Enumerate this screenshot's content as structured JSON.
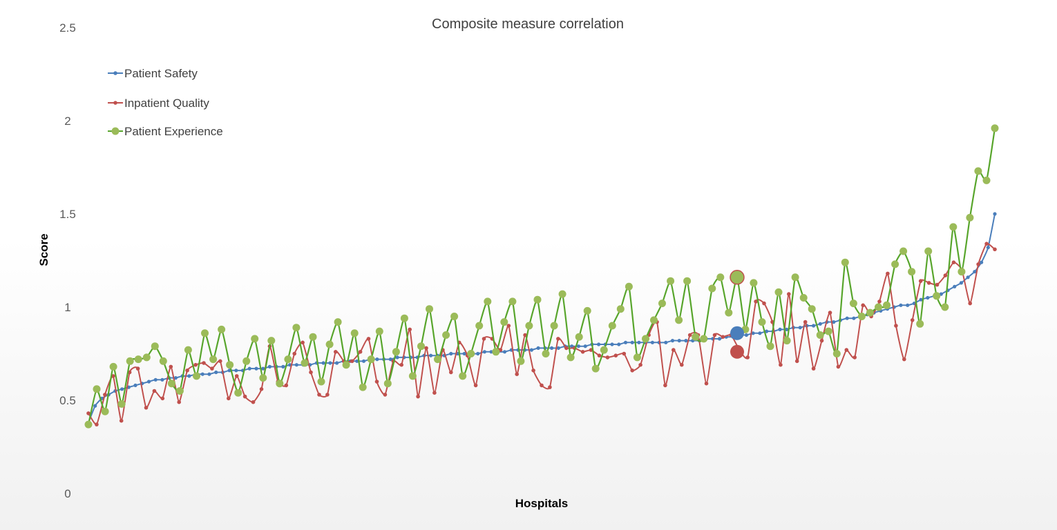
{
  "chart_data": {
    "type": "line",
    "title": "Composite measure correlation",
    "xlabel": "Hospitals",
    "ylabel": "Score",
    "ylim": [
      0,
      2.5
    ],
    "yticks": [
      "0",
      "0.5",
      "1",
      "1.5",
      "2",
      "2.5"
    ],
    "grid": false,
    "legend_position": "top-left",
    "series": [
      {
        "name": "Patient Safety",
        "color": "#4a7ebb",
        "values": [
          0.38,
          0.47,
          0.51,
          0.53,
          0.55,
          0.56,
          0.57,
          0.58,
          0.59,
          0.6,
          0.61,
          0.61,
          0.62,
          0.62,
          0.63,
          0.63,
          0.64,
          0.64,
          0.64,
          0.65,
          0.65,
          0.66,
          0.66,
          0.66,
          0.67,
          0.67,
          0.67,
          0.68,
          0.68,
          0.68,
          0.69,
          0.69,
          0.69,
          0.69,
          0.7,
          0.7,
          0.7,
          0.7,
          0.71,
          0.71,
          0.71,
          0.71,
          0.72,
          0.72,
          0.72,
          0.72,
          0.73,
          0.73,
          0.73,
          0.73,
          0.74,
          0.74,
          0.74,
          0.74,
          0.75,
          0.75,
          0.75,
          0.75,
          0.75,
          0.76,
          0.76,
          0.76,
          0.76,
          0.77,
          0.77,
          0.77,
          0.77,
          0.78,
          0.78,
          0.78,
          0.78,
          0.79,
          0.79,
          0.79,
          0.79,
          0.8,
          0.8,
          0.8,
          0.8,
          0.8,
          0.81,
          0.81,
          0.81,
          0.81,
          0.81,
          0.81,
          0.81,
          0.82,
          0.82,
          0.82,
          0.82,
          0.82,
          0.83,
          0.83,
          0.83,
          0.84,
          0.84,
          0.85,
          0.85,
          0.86,
          0.86,
          0.87,
          0.87,
          0.88,
          0.88,
          0.89,
          0.89,
          0.9,
          0.9,
          0.91,
          0.92,
          0.92,
          0.93,
          0.94,
          0.94,
          0.95,
          0.96,
          0.97,
          0.98,
          0.99,
          1.0,
          1.01,
          1.01,
          1.02,
          1.04,
          1.05,
          1.06,
          1.07,
          1.09,
          1.11,
          1.13,
          1.16,
          1.19,
          1.24,
          1.32,
          1.5
        ]
      },
      {
        "name": "Inpatient Quality",
        "color": "#c0504d",
        "values": [
          0.43,
          0.37,
          0.53,
          0.63,
          0.39,
          0.65,
          0.67,
          0.46,
          0.55,
          0.51,
          0.68,
          0.49,
          0.66,
          0.69,
          0.7,
          0.67,
          0.71,
          0.51,
          0.63,
          0.52,
          0.49,
          0.56,
          0.79,
          0.6,
          0.58,
          0.75,
          0.81,
          0.65,
          0.53,
          0.53,
          0.76,
          0.71,
          0.71,
          0.76,
          0.83,
          0.6,
          0.53,
          0.71,
          0.69,
          0.88,
          0.52,
          0.78,
          0.54,
          0.77,
          0.65,
          0.81,
          0.74,
          0.58,
          0.83,
          0.83,
          0.77,
          0.9,
          0.64,
          0.85,
          0.66,
          0.58,
          0.57,
          0.83,
          0.78,
          0.78,
          0.76,
          0.77,
          0.74,
          0.73,
          0.74,
          0.75,
          0.66,
          0.69,
          0.85,
          0.92,
          0.58,
          0.77,
          0.69,
          0.85,
          0.85,
          0.59,
          0.85,
          0.84,
          0.85,
          0.77,
          0.73,
          1.03,
          1.02,
          0.92,
          0.69,
          1.07,
          0.71,
          0.92,
          0.67,
          0.82,
          0.97,
          0.68,
          0.77,
          0.73,
          1.01,
          0.95,
          1.03,
          1.18,
          0.9,
          0.72,
          0.93,
          1.14,
          1.13,
          1.12,
          1.17,
          1.24,
          1.2,
          1.02,
          1.23,
          1.34,
          1.31
        ]
      },
      {
        "name": "Patient Experience",
        "color": "#57a52b",
        "marker_color": "#9bbb59",
        "values": [
          0.37,
          0.56,
          0.44,
          0.68,
          0.48,
          0.71,
          0.72,
          0.73,
          0.79,
          0.71,
          0.59,
          0.55,
          0.77,
          0.63,
          0.86,
          0.72,
          0.88,
          0.69,
          0.54,
          0.71,
          0.83,
          0.62,
          0.82,
          0.59,
          0.72,
          0.89,
          0.7,
          0.84,
          0.6,
          0.8,
          0.92,
          0.69,
          0.86,
          0.57,
          0.72,
          0.87,
          0.59,
          0.76,
          0.94,
          0.63,
          0.79,
          0.99,
          0.72,
          0.85,
          0.95,
          0.63,
          0.75,
          0.9,
          1.03,
          0.76,
          0.92,
          1.03,
          0.71,
          0.9,
          1.04,
          0.75,
          0.9,
          1.07,
          0.73,
          0.84,
          0.98,
          0.67,
          0.77,
          0.9,
          0.99,
          1.11,
          0.73,
          0.83,
          0.93,
          1.02,
          1.14,
          0.93,
          1.14,
          0.84,
          0.83,
          1.1,
          1.16,
          0.97,
          1.16,
          0.88,
          1.13,
          0.92,
          0.79,
          1.08,
          0.82,
          1.16,
          1.05,
          0.99,
          0.85,
          0.87,
          0.75,
          1.24,
          1.02,
          0.95,
          0.97,
          1.0,
          1.01,
          1.23,
          1.3,
          1.19,
          0.91,
          1.3,
          1.06,
          1.0,
          1.43,
          1.19,
          1.48,
          1.73,
          1.68,
          1.96
        ]
      }
    ],
    "highlight": {
      "Patient Safety": 0.86,
      "Inpatient Quality": 0.76,
      "Patient Experience": 1.16
    }
  }
}
